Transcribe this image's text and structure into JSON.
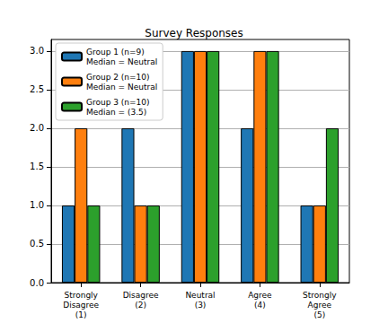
{
  "chart_data": {
    "type": "bar",
    "title": "Survey Responses",
    "categories": [
      "Strongly\nDisagree\n(1)",
      "Disagree\n(2)",
      "Neutral\n(3)",
      "Agree\n(4)",
      "Strongly\nAgree\n(5)"
    ],
    "series": [
      {
        "name": "Group 1 (n=9)\nMedian = Neutral",
        "color": "#1f77b4",
        "values": [
          1,
          2,
          3,
          2,
          1
        ]
      },
      {
        "name": "Group 2 (n=10)\nMedian = Neutral",
        "color": "#ff7f0e",
        "values": [
          2,
          1,
          3,
          3,
          1
        ]
      },
      {
        "name": "Group 3 (n=10)\nMedian = (3.5)",
        "color": "#2ca02c",
        "values": [
          1,
          1,
          3,
          3,
          2
        ]
      }
    ],
    "ylim": [
      0,
      3.15
    ],
    "yticks": [
      {
        "value": 0,
        "label": "0.0"
      },
      {
        "value": 0.5,
        "label": "0.5"
      },
      {
        "value": 1,
        "label": "1.0"
      },
      {
        "value": 1.5,
        "label": "1.5"
      },
      {
        "value": 2,
        "label": "2.0"
      },
      {
        "value": 2.5,
        "label": "2.5"
      },
      {
        "value": 3,
        "label": "3.0"
      }
    ],
    "grid": true,
    "legend": "upper left"
  }
}
